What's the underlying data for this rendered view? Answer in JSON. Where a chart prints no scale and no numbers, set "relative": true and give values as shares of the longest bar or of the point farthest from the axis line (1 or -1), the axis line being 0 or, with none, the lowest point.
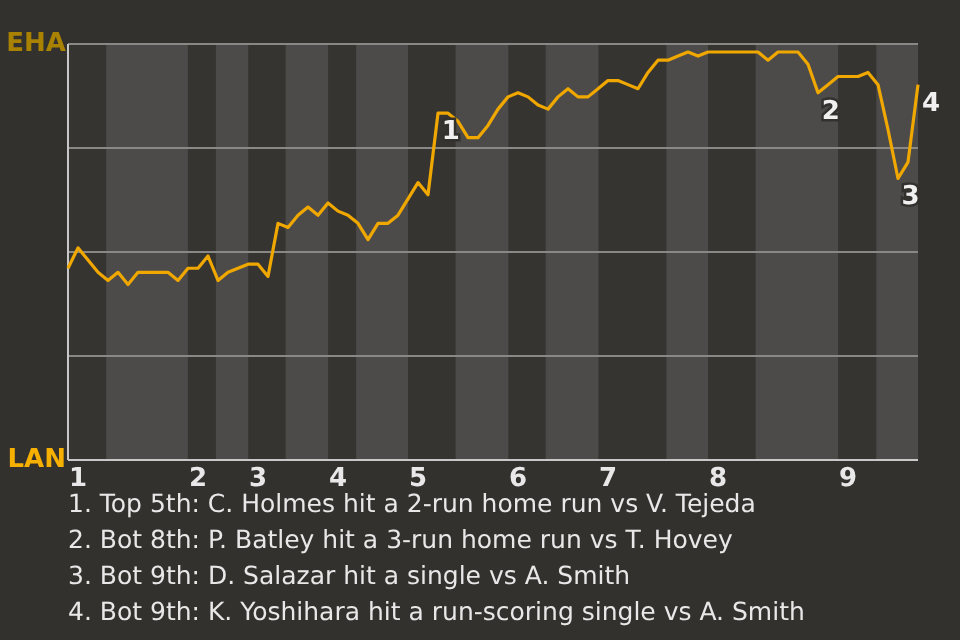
{
  "chart_data": {
    "type": "line",
    "relative": true,
    "categories": [
      null,
      "1",
      null,
      null,
      null,
      null,
      null,
      null,
      null,
      null,
      null,
      null,
      null,
      "2",
      null,
      null,
      null,
      null,
      null,
      "3",
      null,
      null,
      null,
      null,
      null,
      null,
      null,
      "4",
      null,
      null,
      null,
      null,
      null,
      null,
      null,
      "5",
      null,
      null,
      null,
      null,
      null,
      null,
      null,
      null,
      null,
      "6",
      null,
      null,
      null,
      null,
      null,
      null,
      null,
      null,
      "7",
      null,
      null,
      null,
      null,
      null,
      null,
      null,
      null,
      null,
      null,
      "8",
      null,
      null,
      null,
      null,
      null,
      null,
      null,
      null,
      null,
      null,
      null,
      null,
      "9",
      null,
      null,
      null,
      null,
      null,
      null,
      null
    ],
    "grid": "y",
    "series": [
      {
        "color": "#f0a800",
        "values": [
          0.47,
          0.52,
          0.49,
          0.46,
          0.44,
          0.46,
          0.43,
          0.46,
          0.46,
          0.46,
          0.46,
          0.44,
          0.47,
          0.47,
          0.5,
          0.44,
          0.46,
          0.47,
          0.48,
          0.48,
          0.45,
          0.58,
          0.57,
          0.6,
          0.62,
          0.6,
          0.63,
          0.61,
          0.6,
          0.58,
          0.54,
          0.58,
          0.58,
          0.6,
          0.64,
          0.68,
          0.65,
          0.85,
          0.85,
          0.83,
          0.79,
          0.79,
          0.82,
          0.86,
          0.89,
          0.9,
          0.89,
          0.87,
          0.86,
          0.89,
          0.91,
          0.89,
          0.89,
          0.91,
          0.93,
          0.93,
          0.92,
          0.91,
          0.95,
          0.98,
          0.98,
          0.99,
          1,
          0.99,
          1,
          1,
          1,
          1,
          1,
          1,
          0.98,
          1,
          1,
          1,
          0.97,
          0.9,
          0.92,
          0.94,
          0.94,
          0.94,
          0.95,
          0.92,
          0.81,
          0.69,
          0.73,
          0.92
        ]
      }
    ],
    "annotations": [
      "EHA",
      "LAN",
      "1",
      "2",
      "3",
      "4",
      "1. Top 5th: C. Holmes hit a 2-run home run vs V. Tejeda",
      "2. Bot 8th: P. Batley hit a 3-run home run vs T. Hovey",
      "3. Bot 9th: D. Salazar hit a single vs A. Smith",
      "4. Bot 9th: K. Yoshihara hit a run-scoring single vs A. Smith"
    ]
  }
}
